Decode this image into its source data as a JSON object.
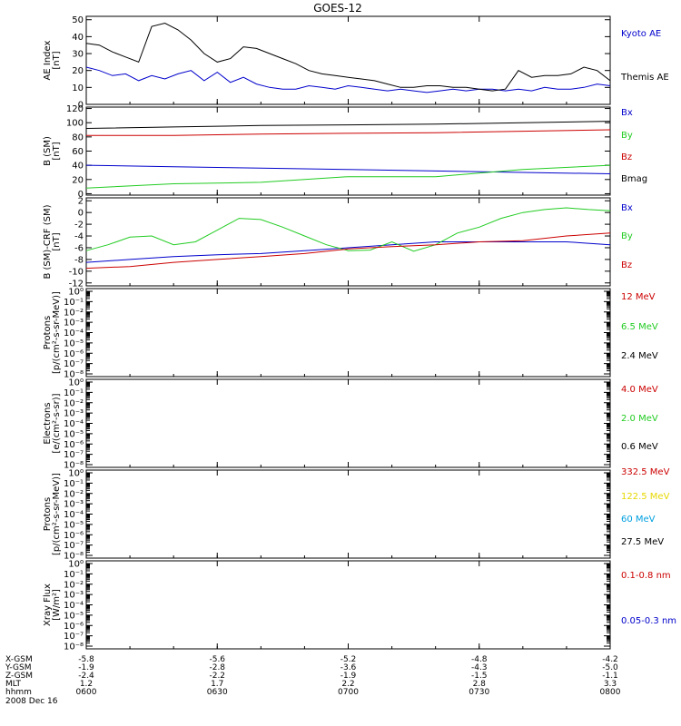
{
  "title": "GOES-12",
  "colors": {
    "black": "#000000",
    "blue": "#0000cc",
    "red": "#cc0000",
    "green": "#22cc22",
    "yellow": "#e6d800",
    "cyan": "#00a0e0"
  },
  "chart_data": [
    {
      "type": "line",
      "panel": "ae",
      "ylabel_1": "AE Index",
      "ylabel_2": "[nT]",
      "ylim": [
        0,
        52
      ],
      "yticks": [
        0,
        10,
        20,
        30,
        40,
        50
      ],
      "yticklabels": [
        "0",
        "10",
        "20",
        "30",
        "40",
        "50"
      ],
      "series": [
        {
          "name": "Kyoto AE",
          "color": "blue",
          "x": [
            0,
            3,
            6,
            9,
            12,
            15,
            18,
            21,
            24,
            27,
            30,
            33,
            36,
            39,
            42,
            45,
            48,
            51,
            54,
            57,
            60,
            63,
            66,
            69,
            72,
            75,
            78,
            81,
            84,
            87,
            90,
            93,
            96,
            99,
            102,
            105,
            108,
            111,
            114,
            117,
            120
          ],
          "values": [
            22,
            20,
            17,
            18,
            14,
            17,
            15,
            18,
            20,
            14,
            19,
            13,
            16,
            12,
            10,
            9,
            9,
            11,
            10,
            9,
            11,
            10,
            9,
            8,
            9,
            8,
            7,
            8,
            9,
            8,
            9,
            9,
            8,
            9,
            8,
            10,
            9,
            9,
            10,
            12,
            11
          ]
        },
        {
          "name": "Themis AE",
          "color": "black",
          "x": [
            0,
            3,
            6,
            9,
            12,
            15,
            18,
            21,
            24,
            27,
            30,
            33,
            36,
            39,
            42,
            45,
            48,
            51,
            54,
            57,
            60,
            63,
            66,
            69,
            72,
            75,
            78,
            81,
            84,
            87,
            90,
            93,
            96,
            99,
            102,
            105,
            108,
            111,
            114,
            117,
            120
          ],
          "values": [
            36,
            35,
            31,
            28,
            25,
            46,
            48,
            44,
            38,
            30,
            25,
            27,
            34,
            33,
            30,
            27,
            24,
            20,
            18,
            17,
            16,
            15,
            14,
            12,
            10,
            10,
            11,
            11,
            10,
            10,
            9,
            8,
            9,
            20,
            16,
            17,
            17,
            18,
            22,
            20,
            14
          ]
        }
      ]
    },
    {
      "type": "line",
      "panel": "bsm",
      "ylabel_1": "B (SM)",
      "ylabel_2": "[nT]",
      "ylim": [
        -2,
        122
      ],
      "yticks": [
        0,
        20,
        40,
        60,
        80,
        100,
        120
      ],
      "yticklabels": [
        "0",
        "20",
        "40",
        "60",
        "80",
        "100",
        "120"
      ],
      "series": [
        {
          "name": "Bx",
          "color": "blue",
          "x": [
            0,
            20,
            40,
            60,
            80,
            100,
            120
          ],
          "values": [
            40,
            38,
            36,
            34,
            32,
            30,
            28
          ]
        },
        {
          "name": "By",
          "color": "green",
          "x": [
            0,
            20,
            40,
            60,
            80,
            100,
            120
          ],
          "values": [
            8,
            14,
            16,
            24,
            24,
            34,
            40
          ]
        },
        {
          "name": "Bz",
          "color": "red",
          "x": [
            0,
            20,
            40,
            60,
            80,
            100,
            120
          ],
          "values": [
            82,
            82,
            84,
            85,
            86,
            88,
            90
          ]
        },
        {
          "name": "Bmag",
          "color": "black",
          "x": [
            0,
            20,
            40,
            60,
            80,
            100,
            120
          ],
          "values": [
            92,
            94,
            96,
            97,
            98,
            100,
            102
          ]
        }
      ]
    },
    {
      "type": "line",
      "panel": "bcrf",
      "ylabel_1": "B (SM)-CRF (SM)",
      "ylabel_2": "[nT]",
      "ylim": [
        -12.5,
        2.5
      ],
      "yticks": [
        2,
        0,
        -2,
        -4,
        -6,
        -8,
        -10,
        -12
      ],
      "yticklabels": [
        "2",
        "0",
        "-2",
        "-4",
        "-6",
        "-8",
        "-10",
        "-12"
      ],
      "series": [
        {
          "name": "Bx",
          "color": "blue",
          "x": [
            0,
            10,
            20,
            30,
            40,
            50,
            60,
            70,
            80,
            90,
            100,
            110,
            120
          ],
          "values": [
            -8.5,
            -8,
            -7.5,
            -7.2,
            -7,
            -6.5,
            -6,
            -5.5,
            -5,
            -5,
            -5,
            -5,
            -5.5
          ]
        },
        {
          "name": "By",
          "color": "green",
          "x": [
            0,
            5,
            10,
            15,
            20,
            25,
            30,
            35,
            40,
            45,
            50,
            55,
            60,
            65,
            70,
            75,
            80,
            85,
            90,
            95,
            100,
            105,
            110,
            115,
            120
          ],
          "values": [
            -6.5,
            -5.5,
            -4.2,
            -4,
            -5.5,
            -5,
            -3,
            -1,
            -1.2,
            -2.5,
            -4,
            -5.5,
            -6.5,
            -6.4,
            -5,
            -6.6,
            -5.5,
            -3.5,
            -2.5,
            -1,
            0,
            0.5,
            0.8,
            0.5,
            0.3
          ]
        },
        {
          "name": "Bz",
          "color": "red",
          "x": [
            0,
            10,
            20,
            30,
            40,
            50,
            60,
            70,
            80,
            90,
            100,
            110,
            120
          ],
          "values": [
            -9.5,
            -9.2,
            -8.5,
            -8,
            -7.5,
            -7,
            -6.2,
            -5.8,
            -5.5,
            -5,
            -4.8,
            -4,
            -3.5
          ]
        }
      ]
    },
    {
      "type": "line",
      "panel": "p1",
      "ylabel_1": "Protons",
      "ylabel_2": "[p/(cm²-s-sr-MeV)]",
      "series": [
        {
          "name": "12 MeV",
          "color": "red",
          "values": []
        },
        {
          "name": "6.5 MeV",
          "color": "green",
          "values": []
        },
        {
          "name": "2.4 MeV",
          "color": "black",
          "values": []
        }
      ]
    },
    {
      "type": "line",
      "panel": "e",
      "ylabel_1": "Electrons",
      "ylabel_2": "[e/(cm²-s-sr)]",
      "series": [
        {
          "name": "4.0 MeV",
          "color": "red",
          "values": []
        },
        {
          "name": "2.0 MeV",
          "color": "green",
          "values": []
        },
        {
          "name": "0.6 MeV",
          "color": "black",
          "values": []
        }
      ]
    },
    {
      "type": "line",
      "panel": "p2",
      "ylabel_1": "Protons",
      "ylabel_2": "[p/(cm²-s-sr-MeV)]",
      "series": [
        {
          "name": "332.5 MeV",
          "color": "red",
          "values": []
        },
        {
          "name": "122.5 MeV",
          "color": "yellow",
          "values": []
        },
        {
          "name": "60 MeV",
          "color": "cyan",
          "values": []
        },
        {
          "name": "27.5 MeV",
          "color": "black",
          "values": []
        }
      ]
    },
    {
      "type": "line",
      "panel": "xray",
      "ylabel_1": "Xray Flux",
      "ylabel_2": "[W/m²]",
      "series": [
        {
          "name": "0.1-0.8 nm",
          "color": "red",
          "values": []
        },
        {
          "name": "0.05-0.3 nm",
          "color": "blue",
          "values": []
        }
      ]
    }
  ],
  "log_tick_labels": [
    "10⁰",
    "10⁻¹",
    "10⁻²",
    "10⁻³",
    "10⁻⁴",
    "10⁻⁵",
    "10⁻⁶",
    "10⁻⁷",
    "10⁻⁸"
  ],
  "xaxis": {
    "rows": [
      {
        "label": "X-GSM",
        "values": [
          "-5.8",
          "-5.6",
          "-5.2",
          "-4.8",
          "-4.2"
        ]
      },
      {
        "label": "Y-GSM",
        "values": [
          "-1.9",
          "-2.8",
          "-3.6",
          "-4.3",
          "-5.0"
        ]
      },
      {
        "label": "Z-GSM",
        "values": [
          "-2.4",
          "-2.2",
          "-1.9",
          "-1.5",
          "-1.1"
        ]
      },
      {
        "label": "MLT",
        "values": [
          "1.2",
          "1.7",
          "2.2",
          "2.8",
          "3.3"
        ]
      },
      {
        "label": "hhmm",
        "values": [
          "0600",
          "0630",
          "0700",
          "0730",
          "0800"
        ]
      }
    ],
    "date": "2008 Dec 16",
    "ticks_minutes": [
      0,
      30,
      60,
      90,
      120
    ]
  }
}
